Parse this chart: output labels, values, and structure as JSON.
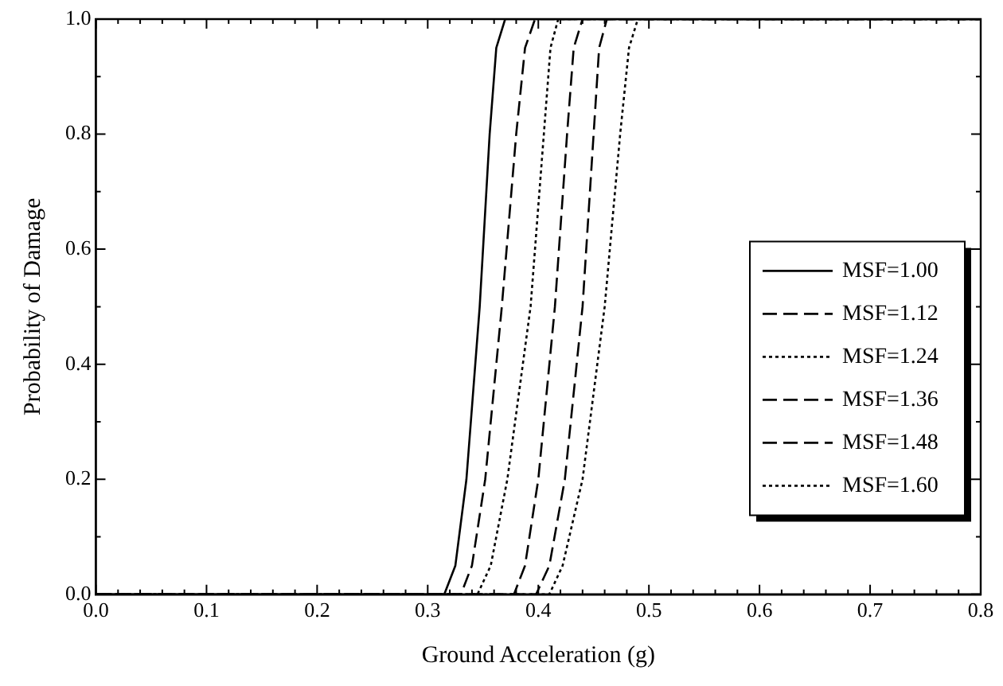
{
  "chart_data": {
    "type": "line",
    "xlabel": "Ground Acceleration (g)",
    "ylabel": "Probability of Damage",
    "xlim": [
      0,
      0.8
    ],
    "ylim": [
      0,
      1
    ],
    "xticks": [
      {
        "value": 0,
        "label": "0.0"
      },
      0.1,
      0.2,
      0.3,
      0.4,
      0.5,
      0.6,
      0.7,
      0.8
    ],
    "yticks": [
      {
        "value": 0,
        "label": "0.0"
      },
      0.2,
      0.4,
      0.6,
      0.8,
      {
        "value": 1,
        "label": "1.0"
      }
    ],
    "grid": false,
    "legend": "right",
    "marker": "none",
    "series": [
      {
        "name": "MSF=1.00",
        "color": "#000000",
        "line_style": "solid",
        "x": [
          0,
          0.315,
          0.325,
          0.335,
          0.347,
          0.356,
          0.362,
          0.37,
          0.8
        ],
        "values": [
          0,
          0,
          0.05,
          0.2,
          0.5,
          0.8,
          0.95,
          1,
          1
        ]
      },
      {
        "name": "MSF=1.12",
        "color": "#000000",
        "line_style": "dashed",
        "x": [
          0,
          0.33,
          0.34,
          0.352,
          0.367,
          0.38,
          0.388,
          0.397,
          0.8
        ],
        "values": [
          0,
          0,
          0.05,
          0.2,
          0.5,
          0.8,
          0.95,
          1,
          1
        ]
      },
      {
        "name": "MSF=1.24",
        "color": "#000000",
        "line_style": "dotted",
        "x": [
          0,
          0.345,
          0.357,
          0.372,
          0.393,
          0.405,
          0.411,
          0.418,
          0.8
        ],
        "values": [
          0,
          0,
          0.05,
          0.2,
          0.5,
          0.8,
          0.95,
          1,
          1
        ]
      },
      {
        "name": "MSF=1.36",
        "color": "#000000",
        "line_style": "dashed",
        "x": [
          0,
          0.378,
          0.388,
          0.4,
          0.415,
          0.426,
          0.432,
          0.44,
          0.8
        ],
        "values": [
          0,
          0,
          0.05,
          0.2,
          0.5,
          0.8,
          0.95,
          1,
          1
        ]
      },
      {
        "name": "MSF=1.48",
        "color": "#000000",
        "line_style": "dashed",
        "x": [
          0,
          0.398,
          0.41,
          0.424,
          0.44,
          0.45,
          0.455,
          0.462,
          0.8
        ],
        "values": [
          0,
          0,
          0.05,
          0.2,
          0.5,
          0.8,
          0.95,
          1,
          1
        ]
      },
      {
        "name": "MSF=1.60",
        "color": "#000000",
        "line_style": "dotted",
        "x": [
          0,
          0.41,
          0.422,
          0.44,
          0.46,
          0.474,
          0.482,
          0.49,
          0.8
        ],
        "values": [
          0,
          0,
          0.05,
          0.2,
          0.5,
          0.8,
          0.95,
          1,
          1
        ]
      }
    ]
  }
}
